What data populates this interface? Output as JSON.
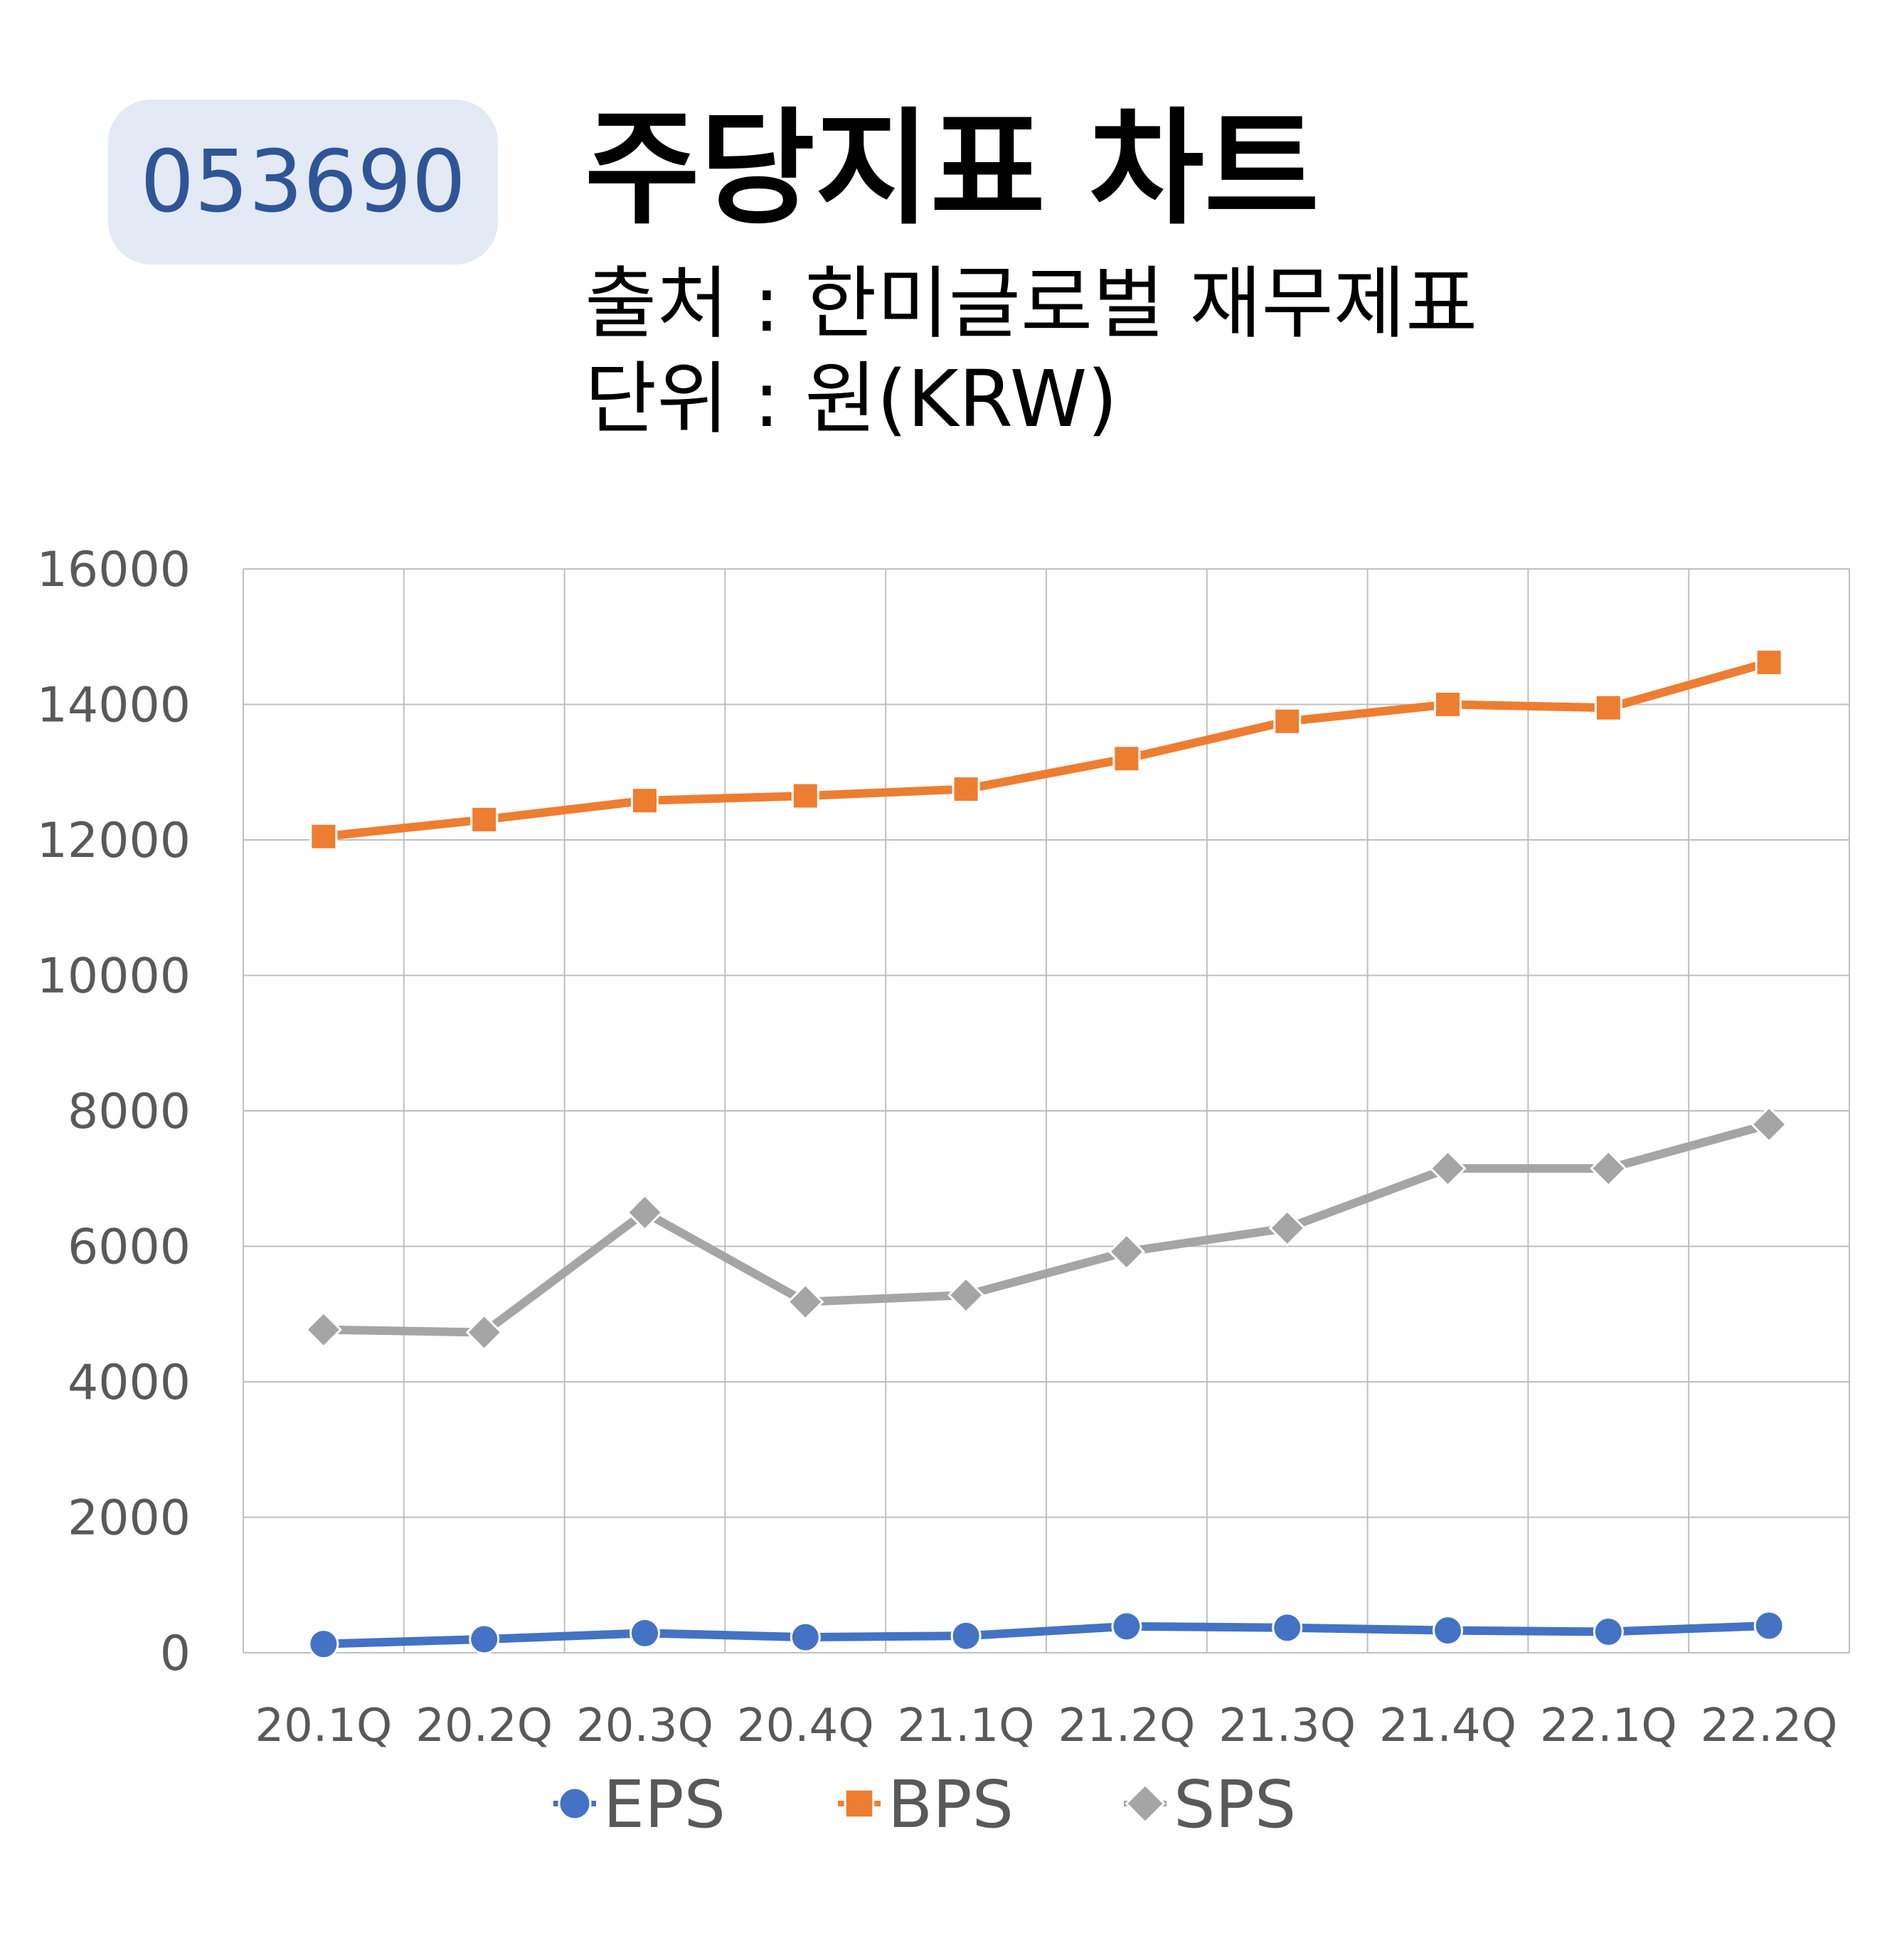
{
  "header": {
    "code": "053690",
    "title": "주당지표 차트",
    "source": "출처 : 한미글로벌 재무제표",
    "unit": "단위 : 원(KRW)"
  },
  "colors": {
    "EPS": "#4472c4",
    "BPS": "#ed7d31",
    "SPS": "#a5a5a5",
    "grid": "#bfbfbf",
    "badge": "#e3e9f5",
    "badge_text": "#2f5597"
  },
  "chart_data": {
    "type": "line",
    "categories": [
      "20.1Q",
      "20.2Q",
      "20.3Q",
      "20.4Q",
      "21.1Q",
      "21.2Q",
      "21.3Q",
      "21.4Q",
      "22.1Q",
      "22.2Q"
    ],
    "ylim": [
      0,
      16000
    ],
    "yticks": [
      0,
      2000,
      4000,
      6000,
      8000,
      10000,
      12000,
      14000,
      16000
    ],
    "grid": true,
    "legend": "bottom",
    "series": [
      {
        "name": "EPS",
        "marker": "circle",
        "values": [
          130,
          200,
          290,
          230,
          250,
          390,
          370,
          330,
          310,
          400
        ]
      },
      {
        "name": "BPS",
        "marker": "square",
        "values": [
          12050,
          12300,
          12580,
          12650,
          12750,
          13200,
          13750,
          14000,
          13950,
          14620
        ]
      },
      {
        "name": "SPS",
        "marker": "diamond",
        "values": [
          4770,
          4730,
          6500,
          5180,
          5280,
          5920,
          6270,
          7150,
          7150,
          7800
        ]
      }
    ]
  }
}
